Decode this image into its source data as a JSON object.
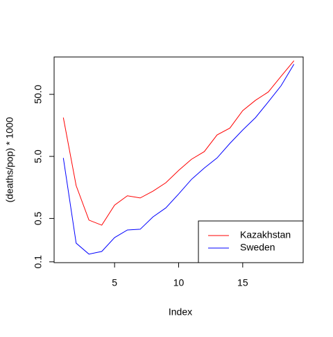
{
  "chart_data": {
    "type": "line",
    "xlabel": "Index",
    "ylabel": "(deaths/pop) * 1000",
    "x": [
      1,
      2,
      3,
      4,
      5,
      6,
      7,
      8,
      9,
      10,
      11,
      12,
      13,
      14,
      15,
      16,
      17,
      18,
      19
    ],
    "series": [
      {
        "name": "Kazakhstan",
        "color": "#ff0000",
        "values": [
          21.1,
          1.69,
          0.47,
          0.39,
          0.82,
          1.16,
          1.07,
          1.38,
          1.88,
          2.97,
          4.49,
          5.97,
          11.1,
          14.3,
          27.3,
          40.1,
          54.6,
          98,
          174
        ]
      },
      {
        "name": "Sweden",
        "color": "#0000ff",
        "values": [
          4.72,
          0.2,
          0.133,
          0.147,
          0.246,
          0.326,
          0.335,
          0.53,
          0.74,
          1.24,
          2.13,
          3.24,
          4.72,
          8.1,
          13.3,
          21.1,
          37.8,
          69,
          153
        ]
      }
    ],
    "xlim": [
      0.28,
      19.72
    ],
    "xticks": [
      5,
      10,
      15
    ],
    "ylim": [
      0.097,
      200
    ],
    "ylog": true,
    "yticks": [
      0.1,
      0.5,
      {
        "value": 5,
        "label": "5.0"
      },
      {
        "value": 50,
        "label": "50.0"
      }
    ],
    "legend": "bottomright"
  }
}
